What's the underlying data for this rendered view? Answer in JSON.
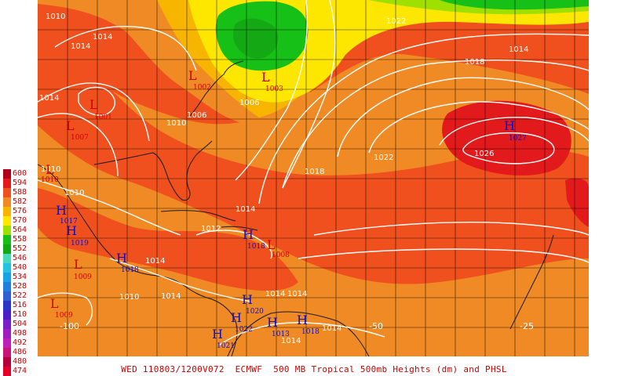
{
  "map": {
    "caption": "WED 110803/1200V072  ECMWF  500 MB Tropical 500mb Heights (dm) and PHSL",
    "legend": [
      {
        "label": "600",
        "color": "#b0001a"
      },
      {
        "label": "594",
        "color": "#e31a1c"
      },
      {
        "label": "588",
        "color": "#f0501e"
      },
      {
        "label": "582",
        "color": "#f08a24"
      },
      {
        "label": "576",
        "color": "#f7b500"
      },
      {
        "label": "570",
        "color": "#fde600"
      },
      {
        "label": "564",
        "color": "#9fe000"
      },
      {
        "label": "558",
        "color": "#17c017"
      },
      {
        "label": "552",
        "color": "#15a815"
      },
      {
        "label": "546",
        "color": "#49d8b8"
      },
      {
        "label": "540",
        "color": "#22c2e0"
      },
      {
        "label": "534",
        "color": "#17a2e6"
      },
      {
        "label": "528",
        "color": "#1e80dc"
      },
      {
        "label": "522",
        "color": "#2f5fd0"
      },
      {
        "label": "516",
        "color": "#2a36c4"
      },
      {
        "label": "510",
        "color": "#4a1ec8"
      },
      {
        "label": "504",
        "color": "#7a1ec8"
      },
      {
        "label": "498",
        "color": "#a01ec0"
      },
      {
        "label": "492",
        "color": "#c01eb8"
      },
      {
        "label": "486",
        "color": "#c8147a"
      },
      {
        "label": "480",
        "color": "#b4003c"
      },
      {
        "label": "474",
        "color": "#e4002a"
      }
    ],
    "pressure_systems": [
      {
        "type": "H",
        "value": "1027"
      },
      {
        "type": "L",
        "value": "1003"
      },
      {
        "type": "L",
        "value": "1002"
      },
      {
        "type": "L",
        "value": "1001"
      },
      {
        "type": "L",
        "value": "1007"
      },
      {
        "type": "L",
        "value": "1010"
      },
      {
        "type": "H",
        "value": "1017"
      },
      {
        "type": "H",
        "value": "1019"
      },
      {
        "type": "H",
        "value": "1018"
      },
      {
        "type": "L",
        "value": "1008"
      },
      {
        "type": "H",
        "value": "1018"
      },
      {
        "type": "L",
        "value": "1009"
      },
      {
        "type": "L",
        "value": "1009"
      },
      {
        "type": "H",
        "value": "1020"
      },
      {
        "type": "H",
        "value": "1022"
      },
      {
        "type": "H",
        "value": "1013"
      },
      {
        "type": "H",
        "value": "1018"
      },
      {
        "type": "H",
        "value": "1021"
      }
    ],
    "isobar_labels": [
      "1010",
      "1014",
      "1014",
      "1014",
      "1022",
      "1018",
      "1014",
      "1006",
      "1006",
      "1010",
      "1022",
      "1026",
      "1018",
      "1010",
      "1010",
      "1014",
      "1012",
      "1014",
      "1014",
      "1010",
      "1014",
      "1014",
      "1014",
      "1014"
    ],
    "longitude_labels": [
      "-100",
      "-50",
      "-25"
    ]
  }
}
